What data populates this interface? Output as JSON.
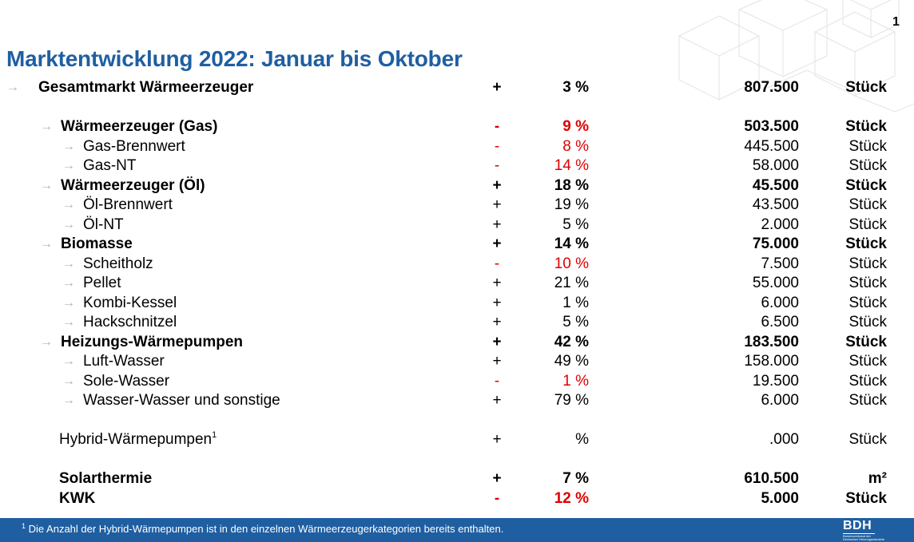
{
  "page_number": "1",
  "title": "Marktentwicklung 2022: Januar bis Oktober",
  "rows": [
    {
      "arrow": "→",
      "label": "Gesamtmarkt Wärmeerzeuger",
      "sup": "",
      "sign": "+",
      "pct": "3 %",
      "num": "807.500",
      "unit": "Stück",
      "bold": true,
      "red": false
    },
    {
      "arrow": "→",
      "label": "Wärmeerzeuger (Gas)",
      "sup": "",
      "sign": "-",
      "pct": "9 %",
      "num": "503.500",
      "unit": "Stück",
      "bold": true,
      "red": true
    },
    {
      "arrow": "→",
      "label": "Gas-Brennwert",
      "sup": "",
      "sign": "-",
      "pct": "8 %",
      "num": "445.500",
      "unit": "Stück",
      "bold": false,
      "red": true
    },
    {
      "arrow": "→",
      "label": "Gas-NT",
      "sup": "",
      "sign": "-",
      "pct": "14 %",
      "num": "58.000",
      "unit": "Stück",
      "bold": false,
      "red": true
    },
    {
      "arrow": "→",
      "label": "Wärmeerzeuger (Öl)",
      "sup": "",
      "sign": "+",
      "pct": "18 %",
      "num": "45.500",
      "unit": "Stück",
      "bold": true,
      "red": false
    },
    {
      "arrow": "→",
      "label": "Öl-Brennwert",
      "sup": "",
      "sign": "+",
      "pct": "19 %",
      "num": "43.500",
      "unit": "Stück",
      "bold": false,
      "red": false
    },
    {
      "arrow": "→",
      "label": "Öl-NT",
      "sup": "",
      "sign": "+",
      "pct": "5 %",
      "num": "2.000",
      "unit": "Stück",
      "bold": false,
      "red": false
    },
    {
      "arrow": "→",
      "label": "Biomasse",
      "sup": "",
      "sign": "+",
      "pct": "14 %",
      "num": "75.000",
      "unit": "Stück",
      "bold": true,
      "red": false
    },
    {
      "arrow": "→",
      "label": "Scheitholz",
      "sup": "",
      "sign": "-",
      "pct": "10 %",
      "num": "7.500",
      "unit": "Stück",
      "bold": false,
      "red": true
    },
    {
      "arrow": "→",
      "label": "Pellet",
      "sup": "",
      "sign": "+",
      "pct": "21 %",
      "num": "55.000",
      "unit": "Stück",
      "bold": false,
      "red": false
    },
    {
      "arrow": "→",
      "label": "Kombi-Kessel",
      "sup": "",
      "sign": "+",
      "pct": "1 %",
      "num": "6.000",
      "unit": "Stück",
      "bold": false,
      "red": false
    },
    {
      "arrow": "→",
      "label": "Hackschnitzel",
      "sup": "",
      "sign": "+",
      "pct": "5 %",
      "num": "6.500",
      "unit": "Stück",
      "bold": false,
      "red": false
    },
    {
      "arrow": "→",
      "label": "Heizungs-Wärmepumpen",
      "sup": "",
      "sign": "+",
      "pct": "42 %",
      "num": "183.500",
      "unit": "Stück",
      "bold": true,
      "red": false
    },
    {
      "arrow": "→",
      "label": "Luft-Wasser",
      "sup": "",
      "sign": "+",
      "pct": "49 %",
      "num": "158.000",
      "unit": "Stück",
      "bold": false,
      "red": false
    },
    {
      "arrow": "→",
      "label": "Sole-Wasser",
      "sup": "",
      "sign": "-",
      "pct": "1 %",
      "num": "19.500",
      "unit": "Stück",
      "bold": false,
      "red": true
    },
    {
      "arrow": "→",
      "label": "Wasser-Wasser und sonstige",
      "sup": "",
      "sign": "+",
      "pct": "79 %",
      "num": "6.000",
      "unit": "Stück",
      "bold": false,
      "red": false
    },
    {
      "arrow": "",
      "label": "Hybrid-Wärmepumpen",
      "sup": "1",
      "sign": "+",
      "pct": "%",
      "num": ".000",
      "unit": "Stück",
      "bold": false,
      "red": false
    },
    {
      "arrow": "",
      "label": "Solarthermie",
      "sup": "",
      "sign": "+",
      "pct": "7 %",
      "num": "610.500",
      "unit": "m²",
      "bold": true,
      "red": false
    },
    {
      "arrow": "",
      "label": "KWK",
      "sup": "",
      "sign": "-",
      "pct": "12 %",
      "num": "5.000",
      "unit": "Stück",
      "bold": true,
      "red": true
    }
  ],
  "footer": {
    "footnote_sup": "1",
    "footnote": "Die Anzahl der Hybrid-Wärmepumpen ist in den einzelnen Wärmeerzeugerkategorien bereits enthalten.",
    "logo_text": "BDH",
    "logo_sub_1": "Bundesverband der",
    "logo_sub_2": "Deutschen Heizungsindustrie"
  },
  "colors": {
    "title": "#1f5fa1",
    "footer_bg": "#1f5fa1",
    "negative": "#e00000",
    "arrow": "#a9b4c1"
  }
}
